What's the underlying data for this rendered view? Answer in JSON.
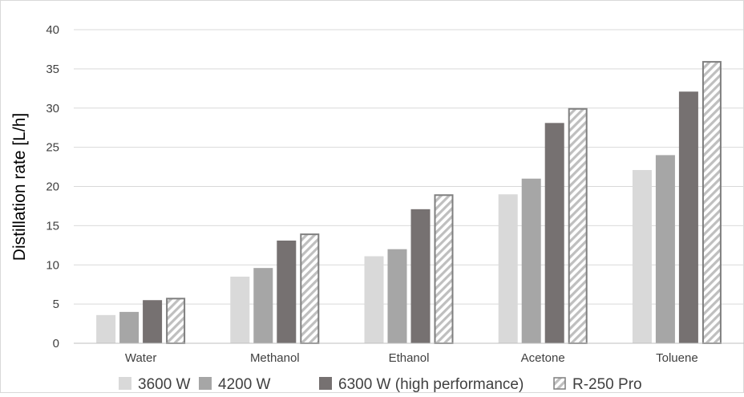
{
  "chart_data": {
    "type": "bar",
    "title": "",
    "xlabel": "",
    "ylabel": "Distillation rate [L/h]",
    "ylim": [
      0,
      40
    ],
    "yticks": [
      0,
      5,
      10,
      15,
      20,
      25,
      30,
      35,
      40
    ],
    "grid": true,
    "legend_position": "bottom",
    "categories": [
      "Water",
      "Methanol",
      "Ethanol",
      "Acetone",
      "Toluene"
    ],
    "series": [
      {
        "name": "3600 W",
        "values": [
          3.6,
          8.5,
          11.1,
          19.0,
          22.1
        ],
        "color": "#d9d9d9",
        "pattern": "solid"
      },
      {
        "name": "4200 W",
        "values": [
          4.0,
          9.6,
          12.0,
          21.0,
          24.0
        ],
        "color": "#a6a6a6",
        "pattern": "solid"
      },
      {
        "name": "6300 W (high performance)",
        "values": [
          5.5,
          13.1,
          17.1,
          28.1,
          32.1
        ],
        "color": "#767171",
        "pattern": "solid"
      },
      {
        "name": "R-250 Pro",
        "values": [
          5.8,
          14.0,
          19.0,
          30.0,
          36.0
        ],
        "color": "#7f7f7f",
        "pattern": "diagonal-stripes"
      }
    ]
  }
}
